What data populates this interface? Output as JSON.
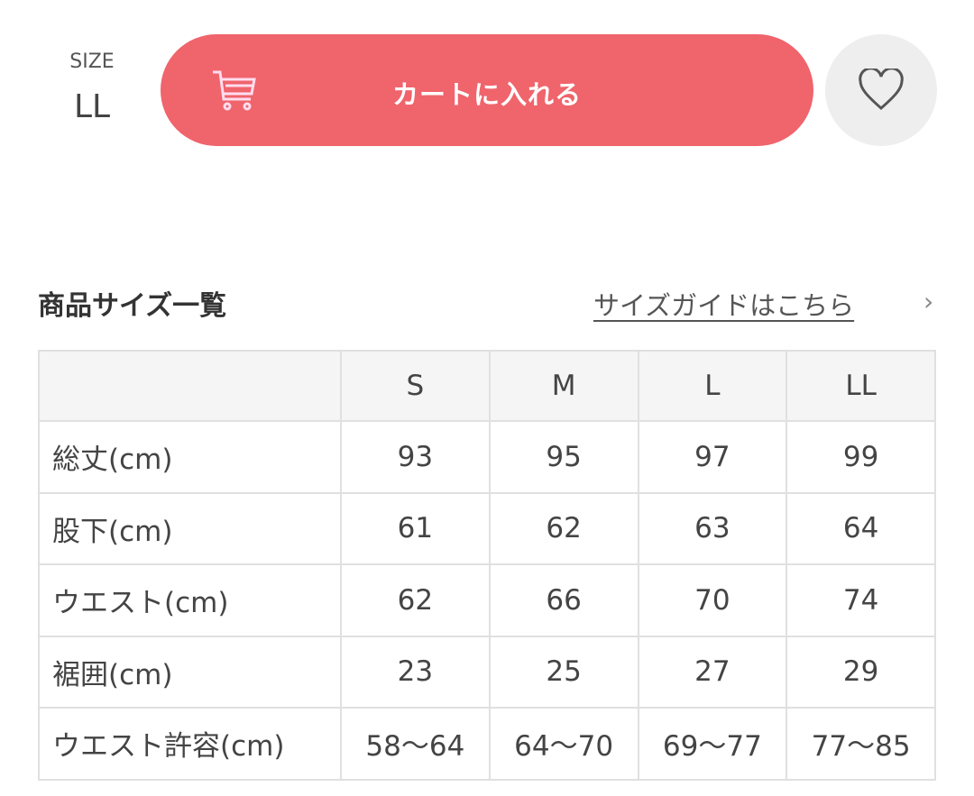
{
  "size_selector": {
    "label": "SIZE",
    "value": "LL"
  },
  "cart_button": {
    "label": "カートに入れる",
    "icon": "cart-icon",
    "color": "#f0646c"
  },
  "favorite_button": {
    "icon": "heart-icon"
  },
  "size_table": {
    "title": "商品サイズ一覧",
    "guide_link": "サイズガイドはこちら",
    "guide_chevron": "›",
    "columns": [
      "",
      "S",
      "M",
      "L",
      "LL"
    ],
    "rows": [
      {
        "label": "総丈(cm)",
        "values": [
          "93",
          "95",
          "97",
          "99"
        ]
      },
      {
        "label": "股下(cm)",
        "values": [
          "61",
          "62",
          "63",
          "64"
        ]
      },
      {
        "label": "ウエスト(cm)",
        "values": [
          "62",
          "66",
          "70",
          "74"
        ]
      },
      {
        "label": "裾囲(cm)",
        "values": [
          "23",
          "25",
          "27",
          "29"
        ]
      },
      {
        "label": "ウエスト許容(cm)",
        "values": [
          "58〜64",
          "64〜70",
          "69〜77",
          "77〜85"
        ]
      }
    ]
  }
}
